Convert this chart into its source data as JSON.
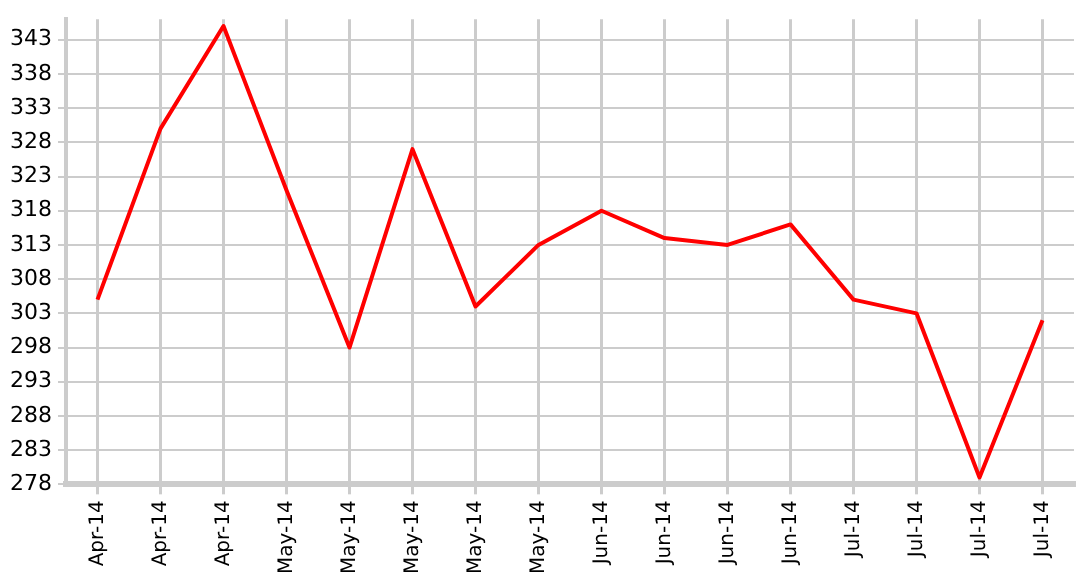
{
  "chart_data": {
    "type": "line",
    "categories": [
      "Apr-14",
      "Apr-14",
      "Apr-14",
      "May-14",
      "May-14",
      "May-14",
      "May-14",
      "May-14",
      "Jun-14",
      "Jun-14",
      "Jun-14",
      "Jun-14",
      "Jul-14",
      "Jul-14",
      "Jul-14",
      "Jul-14"
    ],
    "series": [
      {
        "color": "#ff0000",
        "values": [
          305,
          330,
          345,
          321,
          298,
          327,
          304,
          313,
          318,
          314,
          313,
          316,
          305,
          303,
          279,
          302
        ]
      }
    ],
    "ylim": [
      278,
      346
    ],
    "yticks": [
      278,
      283,
      288,
      293,
      298,
      303,
      308,
      313,
      318,
      323,
      328,
      333,
      338,
      343
    ],
    "grid": true,
    "legend": false,
    "marker": "none",
    "line_style": "solid"
  }
}
